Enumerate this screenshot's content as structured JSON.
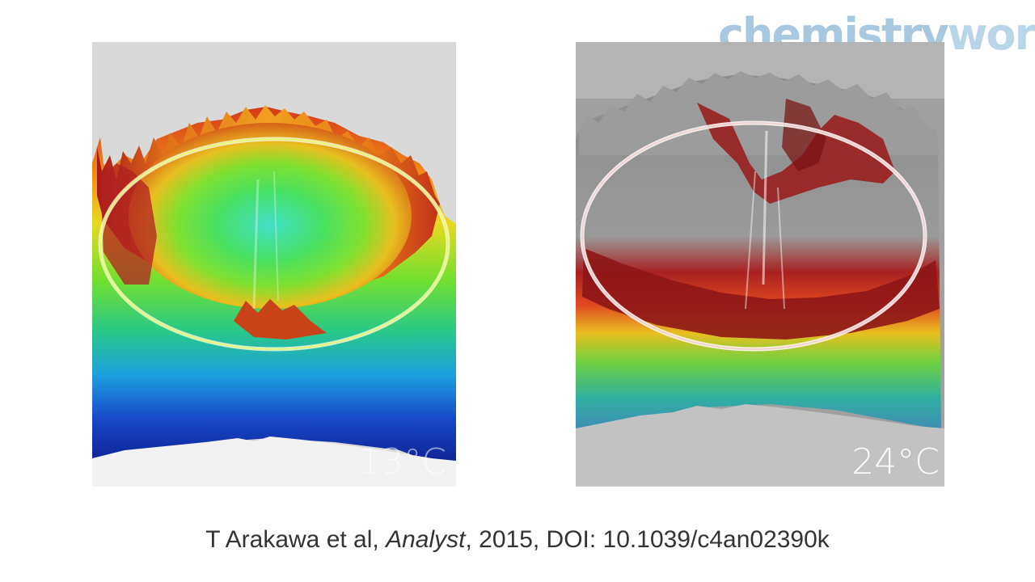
{
  "logo": {
    "part_a": "chemistry",
    "part_b": "world"
  },
  "panels": [
    {
      "temperature": "13°C"
    },
    {
      "temperature": "24°C"
    }
  ],
  "caption": {
    "authors": "T Arakawa et al, ",
    "journal": "Analyst",
    "rest": ", 2015, DOI: 10.1039/c4an02390k"
  }
}
